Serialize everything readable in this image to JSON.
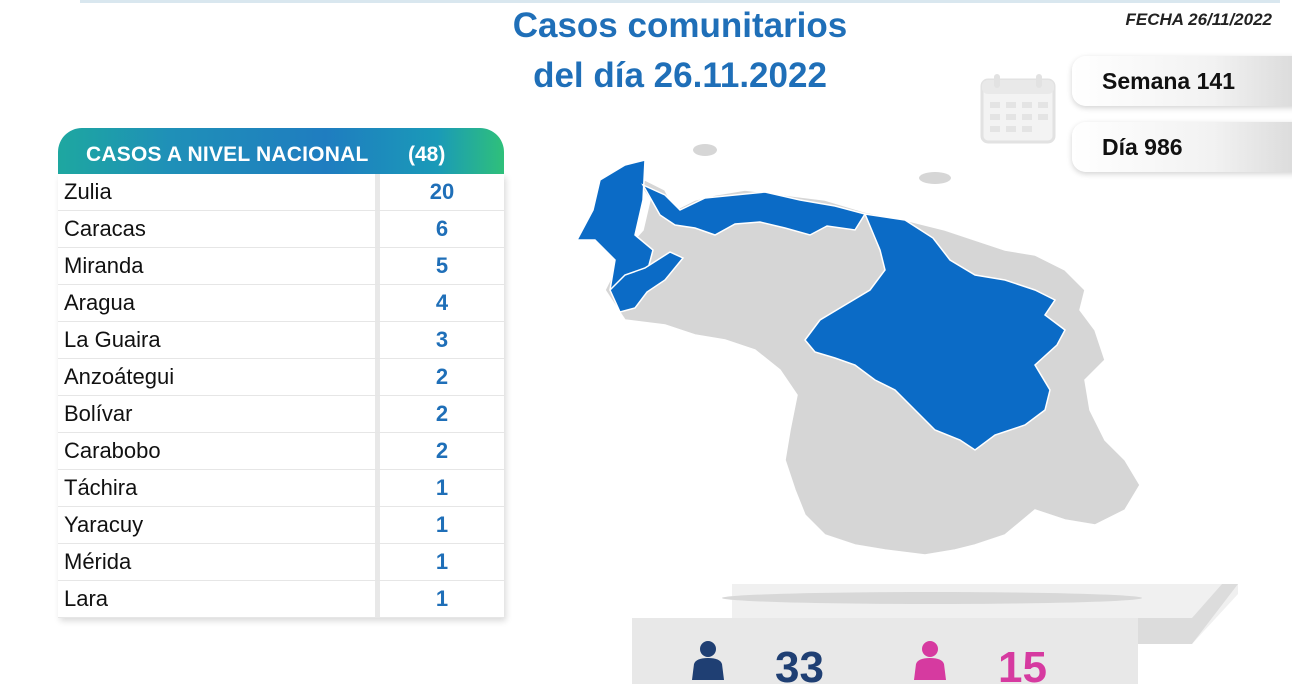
{
  "header": {
    "title_line1": "Casos comunitarios",
    "title_line2": "del día 26.11.2022",
    "fecha": "FECHA 26/11/2022",
    "semana": "Semana 141",
    "dia": "Día 986"
  },
  "table": {
    "heading": "CASOS A NIVEL NACIONAL",
    "total": "(48)",
    "rows": [
      {
        "name": "Zulia",
        "value": "20"
      },
      {
        "name": "Caracas",
        "value": "6"
      },
      {
        "name": "Miranda",
        "value": "5"
      },
      {
        "name": "Aragua",
        "value": "4"
      },
      {
        "name": "La Guaira",
        "value": "3"
      },
      {
        "name": "Anzoátegui",
        "value": "2"
      },
      {
        "name": "Bolívar",
        "value": "2"
      },
      {
        "name": "Carabobo",
        "value": "2"
      },
      {
        "name": "Táchira",
        "value": "1"
      },
      {
        "name": "Yaracuy",
        "value": "1"
      },
      {
        "name": "Mérida",
        "value": "1"
      },
      {
        "name": "Lara",
        "value": "1"
      }
    ]
  },
  "gender": {
    "male_count": "33",
    "female_count": "15",
    "male_color": "#1f3f73",
    "female_color": "#d63aa0"
  },
  "colors": {
    "accent_blue": "#1f6fb8",
    "map_highlight": "#0b6bc6",
    "map_base": "#d6d6d6"
  },
  "icons": {
    "calendar": "calendar-icon",
    "male": "male-person-icon",
    "female": "female-person-icon"
  }
}
